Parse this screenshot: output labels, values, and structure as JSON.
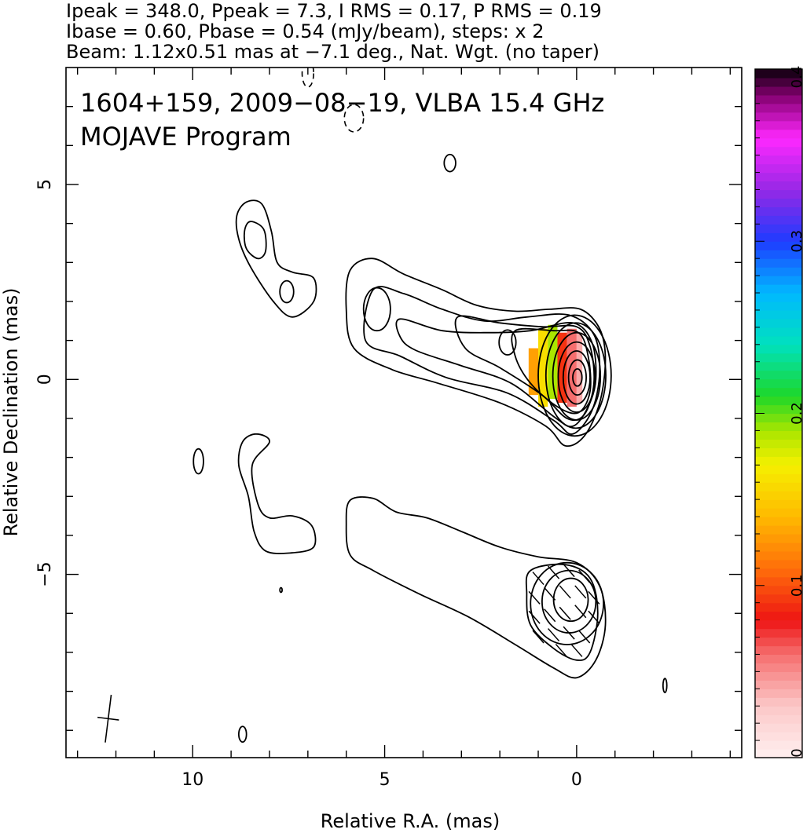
{
  "header": {
    "line1": "Ipeak = 348.0, Ppeak = 7.3, I RMS = 0.17, P RMS = 0.19",
    "line2": "Ibase = 0.60, Pbase = 0.54 (mJy/beam), steps: x 2",
    "line3": "Beam: 1.12x0.51 mas at −7.1 deg., Nat. Wgt. (no taper)"
  },
  "chart_data": {
    "type": "contour",
    "title_lines": [
      "1604+159, 2009−08−19, VLBA 15.4 GHz",
      "MOJAVE Program"
    ],
    "xlabel": "Relative R.A. (mas)",
    "ylabel": "Relative Declination (mas)",
    "xlim": [
      13.3,
      -4.3
    ],
    "ylim": [
      -9.7,
      8.0
    ],
    "xticks": [
      10,
      5,
      0
    ],
    "xtick_labels": [
      "10",
      "5",
      "0"
    ],
    "yticks": [
      5,
      0,
      -5
    ],
    "ytick_labels": [
      "5",
      "0",
      "−5"
    ],
    "beam": {
      "major_mas": 1.12,
      "minor_mas": 0.51,
      "pa_deg": -7.1,
      "center": [
        12.2,
        -8.7
      ]
    },
    "colorbar": {
      "min": 0,
      "max": 0.4,
      "ticks": [
        0,
        0.1,
        0.2,
        0.3,
        0.4
      ],
      "tick_labels": [
        "0",
        "0.1",
        "0.2",
        "0.3",
        "0.4"
      ]
    },
    "fractional_polarization_patches": [
      {
        "x": [
          1.25,
          1.0
        ],
        "y": [
          -0.4,
          0.8
        ],
        "value": 0.13
      },
      {
        "x": [
          1.0,
          0.75
        ],
        "y": [
          -0.7,
          1.3
        ],
        "value": 0.16
      },
      {
        "x": [
          0.75,
          0.5
        ],
        "y": [
          -0.5,
          1.4
        ],
        "value": 0.19
      },
      {
        "x": [
          0.5,
          0.25
        ],
        "y": [
          -0.6,
          1.2
        ],
        "value": 0.09
      },
      {
        "x": [
          0.25,
          0.0
        ],
        "y": [
          -0.7,
          1.3
        ],
        "value": 0.06
      },
      {
        "x": [
          0.0,
          -0.15
        ],
        "y": [
          -0.6,
          1.2
        ],
        "value": 0.04
      }
    ],
    "upper_panel_contours": [
      {
        "kind": "main-jet-outer",
        "points": [
          [
            5.9,
            2.8
          ],
          [
            5.3,
            3.1
          ],
          [
            4.5,
            2.7
          ],
          [
            3.5,
            2.3
          ],
          [
            2.6,
            1.9
          ],
          [
            1.6,
            1.75
          ],
          [
            0.7,
            1.8
          ],
          [
            -0.1,
            1.8
          ],
          [
            -0.6,
            1.3
          ],
          [
            -0.75,
            0.5
          ],
          [
            -0.6,
            -0.6
          ],
          [
            -0.2,
            -1.45
          ],
          [
            0.3,
            -1.7
          ],
          [
            0.8,
            -1.2
          ],
          [
            2.0,
            -0.6
          ],
          [
            3.6,
            -0.1
          ],
          [
            4.8,
            0.25
          ],
          [
            5.8,
            0.8
          ],
          [
            6.0,
            1.8
          ]
        ]
      },
      {
        "kind": "main-jet",
        "points": [
          [
            5.3,
            2.3
          ],
          [
            4.5,
            2.2
          ],
          [
            3.5,
            1.8
          ],
          [
            2.4,
            1.5
          ],
          [
            1.3,
            1.6
          ],
          [
            0.2,
            1.65
          ],
          [
            -0.45,
            1.15
          ],
          [
            -0.6,
            0.2
          ],
          [
            -0.4,
            -0.8
          ],
          [
            0.1,
            -1.4
          ],
          [
            0.6,
            -1.05
          ],
          [
            1.8,
            -0.35
          ],
          [
            3.4,
            0.05
          ],
          [
            4.6,
            0.6
          ],
          [
            5.5,
            1.0
          ]
        ]
      },
      {
        "kind": "main-jet",
        "points": [
          [
            4.6,
            1.55
          ],
          [
            3.5,
            1.25
          ],
          [
            2.3,
            1.2
          ],
          [
            1.2,
            1.25
          ],
          [
            0.1,
            1.45
          ],
          [
            -0.4,
            0.95
          ],
          [
            -0.5,
            0.0
          ],
          [
            -0.3,
            -0.7
          ],
          [
            0.1,
            -1.2
          ],
          [
            0.6,
            -0.95
          ],
          [
            1.7,
            -0.1
          ],
          [
            3.0,
            0.35
          ],
          [
            4.2,
            0.75
          ],
          [
            4.6,
            1.1
          ]
        ]
      },
      {
        "kind": "main-jet",
        "points": [
          [
            3.1,
            1.6
          ],
          [
            2.0,
            1.45
          ],
          [
            0.9,
            1.35
          ],
          [
            0.0,
            1.35
          ],
          [
            -0.35,
            0.85
          ],
          [
            -0.45,
            -0.1
          ],
          [
            -0.2,
            -0.9
          ],
          [
            0.25,
            -1.0
          ],
          [
            0.9,
            -0.4
          ],
          [
            2.0,
            0.3
          ],
          [
            2.9,
            0.8
          ]
        ]
      },
      {
        "kind": "main-jet",
        "points": [
          [
            1.6,
            1.25
          ],
          [
            0.6,
            1.25
          ],
          [
            -0.05,
            1.2
          ],
          [
            -0.3,
            0.6
          ],
          [
            -0.35,
            -0.3
          ],
          [
            -0.05,
            -0.85
          ],
          [
            0.5,
            -0.7
          ],
          [
            1.2,
            -0.1
          ],
          [
            1.6,
            0.6
          ]
        ]
      },
      {
        "kind": "core",
        "cx": 0.05,
        "cy": 0.1,
        "rx": 0.95,
        "ry": 1.55
      },
      {
        "kind": "core",
        "cx": 0.02,
        "cy": 0.1,
        "rx": 0.78,
        "ry": 1.35
      },
      {
        "kind": "core",
        "cx": 0.0,
        "cy": 0.08,
        "rx": 0.62,
        "ry": 1.12
      },
      {
        "kind": "core",
        "cx": 0.0,
        "cy": 0.06,
        "rx": 0.48,
        "ry": 0.9
      },
      {
        "kind": "core",
        "cx": 0.0,
        "cy": 0.05,
        "rx": 0.35,
        "ry": 0.68
      },
      {
        "kind": "core",
        "cx": -0.02,
        "cy": 0.05,
        "rx": 0.23,
        "ry": 0.45
      },
      {
        "kind": "core",
        "cx": -0.02,
        "cy": 0.05,
        "rx": 0.12,
        "ry": 0.22
      },
      {
        "kind": "blob",
        "cx": 5.2,
        "cy": 1.8,
        "rx": 0.35,
        "ry": 0.55
      },
      {
        "kind": "blob",
        "cx": 1.8,
        "cy": 0.95,
        "rx": 0.22,
        "ry": 0.32
      },
      {
        "kind": "island",
        "points": [
          [
            8.6,
            4.55
          ],
          [
            8.2,
            4.5
          ],
          [
            7.95,
            3.8
          ],
          [
            7.8,
            3.0
          ],
          [
            7.4,
            2.75
          ],
          [
            6.85,
            2.6
          ],
          [
            6.85,
            2.0
          ],
          [
            7.4,
            1.6
          ],
          [
            7.9,
            2.0
          ],
          [
            8.5,
            2.9
          ],
          [
            8.8,
            3.6
          ],
          [
            8.85,
            4.2
          ]
        ]
      },
      {
        "kind": "island",
        "points": [
          [
            8.5,
            4.05
          ],
          [
            8.15,
            3.85
          ],
          [
            8.1,
            3.3
          ],
          [
            8.3,
            3.1
          ],
          [
            8.6,
            3.35
          ],
          [
            8.65,
            3.8
          ]
        ]
      },
      {
        "kind": "blob",
        "cx": 7.55,
        "cy": 2.25,
        "rx": 0.18,
        "ry": 0.28
      },
      {
        "kind": "blob",
        "cx": 3.3,
        "cy": 5.55,
        "rx": 0.15,
        "ry": 0.22
      },
      {
        "kind": "negative",
        "cx": 5.8,
        "cy": 6.7,
        "rx": 0.25,
        "ry": 0.35
      },
      {
        "kind": "negative",
        "cx": 7.0,
        "cy": 7.85,
        "rx": 0.15,
        "ry": 0.35
      }
    ],
    "lower_panel_contours": [
      {
        "kind": "jet-outer",
        "points": [
          [
            5.9,
            -3.1
          ],
          [
            5.3,
            -3.05
          ],
          [
            4.7,
            -3.4
          ],
          [
            3.9,
            -3.55
          ],
          [
            3.0,
            -3.9
          ],
          [
            2.0,
            -4.3
          ],
          [
            1.0,
            -4.55
          ],
          [
            0.0,
            -4.7
          ],
          [
            -0.6,
            -5.3
          ],
          [
            -0.75,
            -6.3
          ],
          [
            -0.5,
            -7.2
          ],
          [
            0.0,
            -7.65
          ],
          [
            0.6,
            -7.4
          ],
          [
            1.6,
            -6.8
          ],
          [
            2.8,
            -6.1
          ],
          [
            4.1,
            -5.5
          ],
          [
            5.3,
            -4.9
          ],
          [
            5.9,
            -4.5
          ],
          [
            6.0,
            -3.7
          ]
        ]
      },
      {
        "kind": "jet",
        "points": [
          [
            1.2,
            -4.9
          ],
          [
            0.3,
            -4.75
          ],
          [
            -0.35,
            -5.1
          ],
          [
            -0.55,
            -6.0
          ],
          [
            -0.35,
            -7.0
          ],
          [
            0.0,
            -7.2
          ],
          [
            0.6,
            -6.9
          ],
          [
            1.2,
            -6.3
          ],
          [
            1.3,
            -5.5
          ]
        ]
      },
      {
        "kind": "core",
        "cx": 0.25,
        "cy": -5.75,
        "rx": 0.95,
        "ry": 1.05
      },
      {
        "kind": "core",
        "cx": 0.2,
        "cy": -5.7,
        "rx": 0.7,
        "ry": 0.8
      },
      {
        "kind": "core",
        "cx": 0.15,
        "cy": -5.65,
        "rx": 0.45,
        "ry": 0.55
      },
      {
        "kind": "island",
        "points": [
          [
            8.35,
            -1.4
          ],
          [
            8.0,
            -1.6
          ],
          [
            8.45,
            -2.2
          ],
          [
            8.3,
            -3.2
          ],
          [
            8.0,
            -3.55
          ],
          [
            7.4,
            -3.5
          ],
          [
            6.9,
            -3.75
          ],
          [
            6.85,
            -4.3
          ],
          [
            7.45,
            -4.45
          ],
          [
            8.1,
            -4.4
          ],
          [
            8.4,
            -3.9
          ],
          [
            8.55,
            -3.0
          ],
          [
            8.8,
            -2.2
          ],
          [
            8.7,
            -1.6
          ]
        ]
      },
      {
        "kind": "blob",
        "cx": 9.85,
        "cy": -2.1,
        "rx": 0.13,
        "ry": 0.32
      },
      {
        "kind": "blob",
        "cx": 8.7,
        "cy": -9.1,
        "rx": 0.1,
        "ry": 0.2
      },
      {
        "kind": "blob",
        "cx": -2.3,
        "cy": -7.85,
        "rx": 0.05,
        "ry": 0.18
      },
      {
        "kind": "blob",
        "cx": 7.7,
        "cy": -5.4,
        "rx": 0.03,
        "ry": 0.06
      }
    ],
    "evpa_ticks": [
      {
        "x": 1.0,
        "y": -5.1
      },
      {
        "x": 0.6,
        "y": -4.95
      },
      {
        "x": 0.2,
        "y": -4.9
      },
      {
        "x": -0.2,
        "y": -5.05
      },
      {
        "x": 1.1,
        "y": -5.6
      },
      {
        "x": 0.7,
        "y": -5.5
      },
      {
        "x": 0.3,
        "y": -5.45
      },
      {
        "x": -0.1,
        "y": -5.45
      },
      {
        "x": -0.45,
        "y": -5.6
      },
      {
        "x": 1.1,
        "y": -6.1
      },
      {
        "x": 0.7,
        "y": -6.05
      },
      {
        "x": 0.3,
        "y": -6.0
      },
      {
        "x": -0.1,
        "y": -5.95
      },
      {
        "x": -0.45,
        "y": -6.1
      },
      {
        "x": 1.0,
        "y": -6.6
      },
      {
        "x": 0.6,
        "y": -6.55
      },
      {
        "x": 0.2,
        "y": -6.5
      },
      {
        "x": -0.2,
        "y": -6.6
      },
      {
        "x": 0.4,
        "y": -6.95
      },
      {
        "x": 0.0,
        "y": -6.95
      }
    ]
  }
}
